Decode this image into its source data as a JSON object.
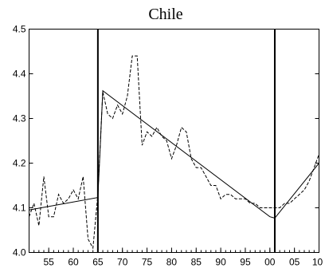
{
  "chart_data": {
    "type": "line",
    "title": "Chile",
    "xlabel": "",
    "ylabel": "",
    "xlim": [
      1951,
      2010
    ],
    "ylim": [
      4.0,
      4.5
    ],
    "x_tick_values": [
      1955,
      1960,
      1965,
      1970,
      1975,
      1980,
      1985,
      1990,
      1995,
      2000,
      2005,
      2010
    ],
    "x_tick_labels": [
      "55",
      "60",
      "65",
      "70",
      "75",
      "80",
      "85",
      "90",
      "95",
      "00",
      "05",
      "10"
    ],
    "y_tick_values": [
      4.0,
      4.1,
      4.2,
      4.3,
      4.4,
      4.5
    ],
    "y_tick_labels": [
      "4.0",
      "4.1",
      "4.2",
      "4.3",
      "4.4",
      "4.5"
    ],
    "grid": false,
    "legend": "none",
    "break_lines": [
      1965,
      2001
    ],
    "series": [
      {
        "style": "dashed",
        "x": [
          1951,
          1952,
          1953,
          1954,
          1955,
          1956,
          1957,
          1958,
          1959,
          1960,
          1961,
          1962,
          1963,
          1964,
          1965,
          1966,
          1967,
          1968,
          1969,
          1970,
          1971,
          1972,
          1973,
          1974,
          1975,
          1976,
          1977,
          1978,
          1979,
          1980,
          1981,
          1982,
          1983,
          1984,
          1985,
          1986,
          1987,
          1988,
          1989,
          1990,
          1991,
          1992,
          1993,
          1994,
          1995,
          1996,
          1997,
          1998,
          1999,
          2000,
          2001,
          2002,
          2003,
          2004,
          2005,
          2006,
          2007,
          2008,
          2009,
          2010
        ],
        "values": [
          4.08,
          4.11,
          4.06,
          4.17,
          4.08,
          4.08,
          4.13,
          4.11,
          4.12,
          4.14,
          4.12,
          4.17,
          4.03,
          4.01,
          4.13,
          4.36,
          4.31,
          4.3,
          4.33,
          4.31,
          4.35,
          4.44,
          4.44,
          4.24,
          4.27,
          4.26,
          4.28,
          4.26,
          4.25,
          4.21,
          4.24,
          4.28,
          4.27,
          4.21,
          4.19,
          4.19,
          4.17,
          4.15,
          4.15,
          4.12,
          4.13,
          4.13,
          4.12,
          4.12,
          4.12,
          4.11,
          4.11,
          4.1,
          4.1,
          4.1,
          4.1,
          4.1,
          4.11,
          4.11,
          4.12,
          4.13,
          4.14,
          4.16,
          4.19,
          4.22
        ]
      },
      {
        "style": "solid",
        "x": [
          1951,
          1965,
          1965,
          1966,
          2000,
          2001,
          2010
        ],
        "values": [
          4.095,
          4.123,
          4.123,
          4.362,
          4.08,
          4.077,
          4.2
        ]
      }
    ]
  }
}
